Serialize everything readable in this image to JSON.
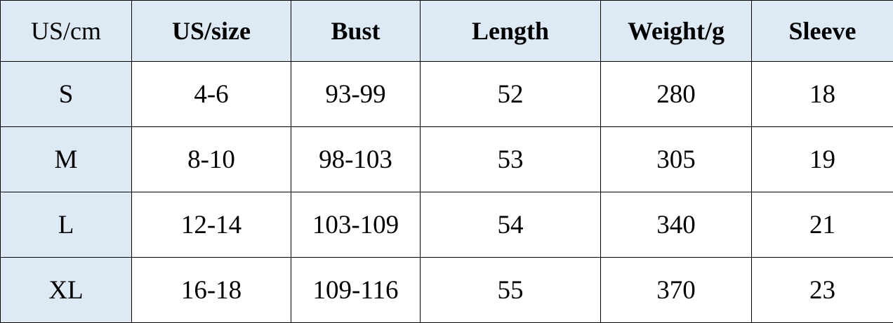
{
  "table": {
    "headers": [
      "US/cm",
      "US/size",
      "Bust",
      "Length",
      "Weight/g",
      "Sleeve"
    ],
    "rows": [
      [
        "S",
        "4-6",
        "93-99",
        "52",
        "280",
        "18"
      ],
      [
        "M",
        "8-10",
        "98-103",
        "53",
        "305",
        "19"
      ],
      [
        "L",
        "12-14",
        "103-109",
        "54",
        "340",
        "21"
      ],
      [
        "XL",
        "16-18",
        "109-116",
        "55",
        "370",
        "23"
      ]
    ]
  },
  "colors": {
    "header_bg": "#dde9f4",
    "border": "#000000"
  }
}
